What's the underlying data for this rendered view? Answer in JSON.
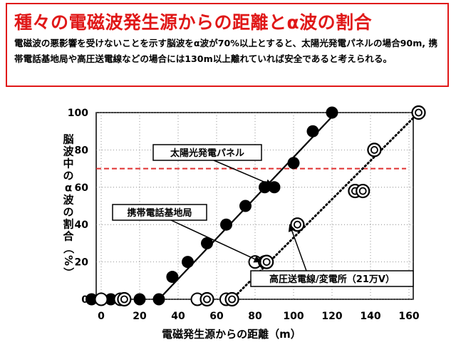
{
  "header": {
    "title": "種々の電磁波発生源からの距離とα波の割合",
    "description": "電磁波の悪影響を受けないことを示す脳波をα波が70%以上とすると、太陽光発電パネルの場合90m, 携帯電話基地局や高圧送電線などの場合には130m以上離れていれば安全であると考えられる。"
  },
  "colors": {
    "title": "#e01818",
    "threshold_line": "#e03030",
    "ink": "#000000"
  },
  "chart_data": {
    "type": "scatter",
    "xlabel": "電磁発生源からの距離（m）",
    "ylabel": "脳波中のα波の割合（%）",
    "xlim": [
      -5,
      170
    ],
    "ylim": [
      0,
      100
    ],
    "xticks": [
      0,
      20,
      40,
      60,
      80,
      100,
      120,
      140,
      160
    ],
    "yticks": [
      0,
      20,
      40,
      60,
      80,
      100
    ],
    "threshold": {
      "y": 70,
      "style": "dashed",
      "color": "#e03030"
    },
    "series": [
      {
        "name": "太陽光発電パネル",
        "marker": "filled-circle",
        "x": [
          -5,
          5,
          20,
          30,
          37,
          45,
          55,
          65,
          75,
          85,
          90,
          100,
          110,
          120
        ],
        "y": [
          0,
          0,
          0,
          0,
          12,
          20,
          30,
          40,
          50,
          60,
          60,
          73,
          90,
          100
        ],
        "trend": {
          "x": [
            30,
            122
          ],
          "y": [
            0,
            100
          ],
          "style": "solid"
        }
      },
      {
        "name": "携帯電話基地局",
        "marker": "open-circle",
        "x": [
          0,
          10,
          50,
          55,
          65,
          80,
          85
        ],
        "y": [
          0,
          0,
          0,
          0,
          0,
          20,
          20
        ]
      },
      {
        "name": "高圧送電線/変電所（21万V）",
        "marker": "double-circle",
        "x": [
          12,
          55,
          68,
          86,
          102,
          132,
          136,
          142,
          165
        ],
        "y": [
          0,
          0,
          0,
          20,
          40,
          58,
          58,
          80,
          100
        ],
        "trend": {
          "x": [
            68,
            165
          ],
          "y": [
            0,
            100
          ],
          "style": "dotted"
        }
      }
    ],
    "annotations": [
      {
        "text": "太陽光発電パネル",
        "arrow_to": [
          89,
          61
        ]
      },
      {
        "text": "携帯電話基地局",
        "arrow_to": [
          83,
          20
        ]
      },
      {
        "text": "高圧送電線/変電所（21万V）",
        "arrow_to": [
          98,
          40
        ]
      }
    ]
  }
}
